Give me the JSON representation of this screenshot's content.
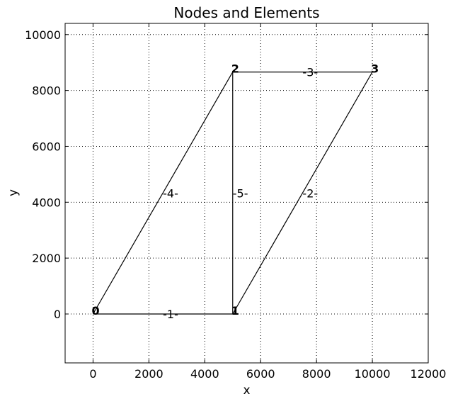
{
  "chart_data": {
    "type": "line",
    "title": "Nodes and Elements",
    "xlabel": "x",
    "ylabel": "y",
    "xlim": [
      -1000,
      12000
    ],
    "ylim": [
      -1750,
      10400
    ],
    "xticks": [
      0,
      2000,
      4000,
      6000,
      8000,
      10000,
      12000
    ],
    "yticks": [
      0,
      2000,
      4000,
      6000,
      8000,
      10000
    ],
    "xtick_labels": [
      "0",
      "2000",
      "4000",
      "6000",
      "8000",
      "10000",
      "12000"
    ],
    "ytick_labels": [
      "0",
      "2000",
      "4000",
      "6000",
      "8000",
      "10000"
    ],
    "grid": true,
    "nodes": [
      {
        "id": "0",
        "x": 0,
        "y": 0
      },
      {
        "id": "1",
        "x": 5000,
        "y": 0
      },
      {
        "id": "2",
        "x": 5000,
        "y": 8660
      },
      {
        "id": "3",
        "x": 10000,
        "y": 8660
      }
    ],
    "elements": [
      {
        "label": "-1-",
        "from": "0",
        "to": "1"
      },
      {
        "label": "-2-",
        "from": "1",
        "to": "3"
      },
      {
        "label": "-3-",
        "from": "2",
        "to": "3"
      },
      {
        "label": "-4-",
        "from": "0",
        "to": "2"
      },
      {
        "label": "-5-",
        "from": "1",
        "to": "2"
      }
    ]
  }
}
